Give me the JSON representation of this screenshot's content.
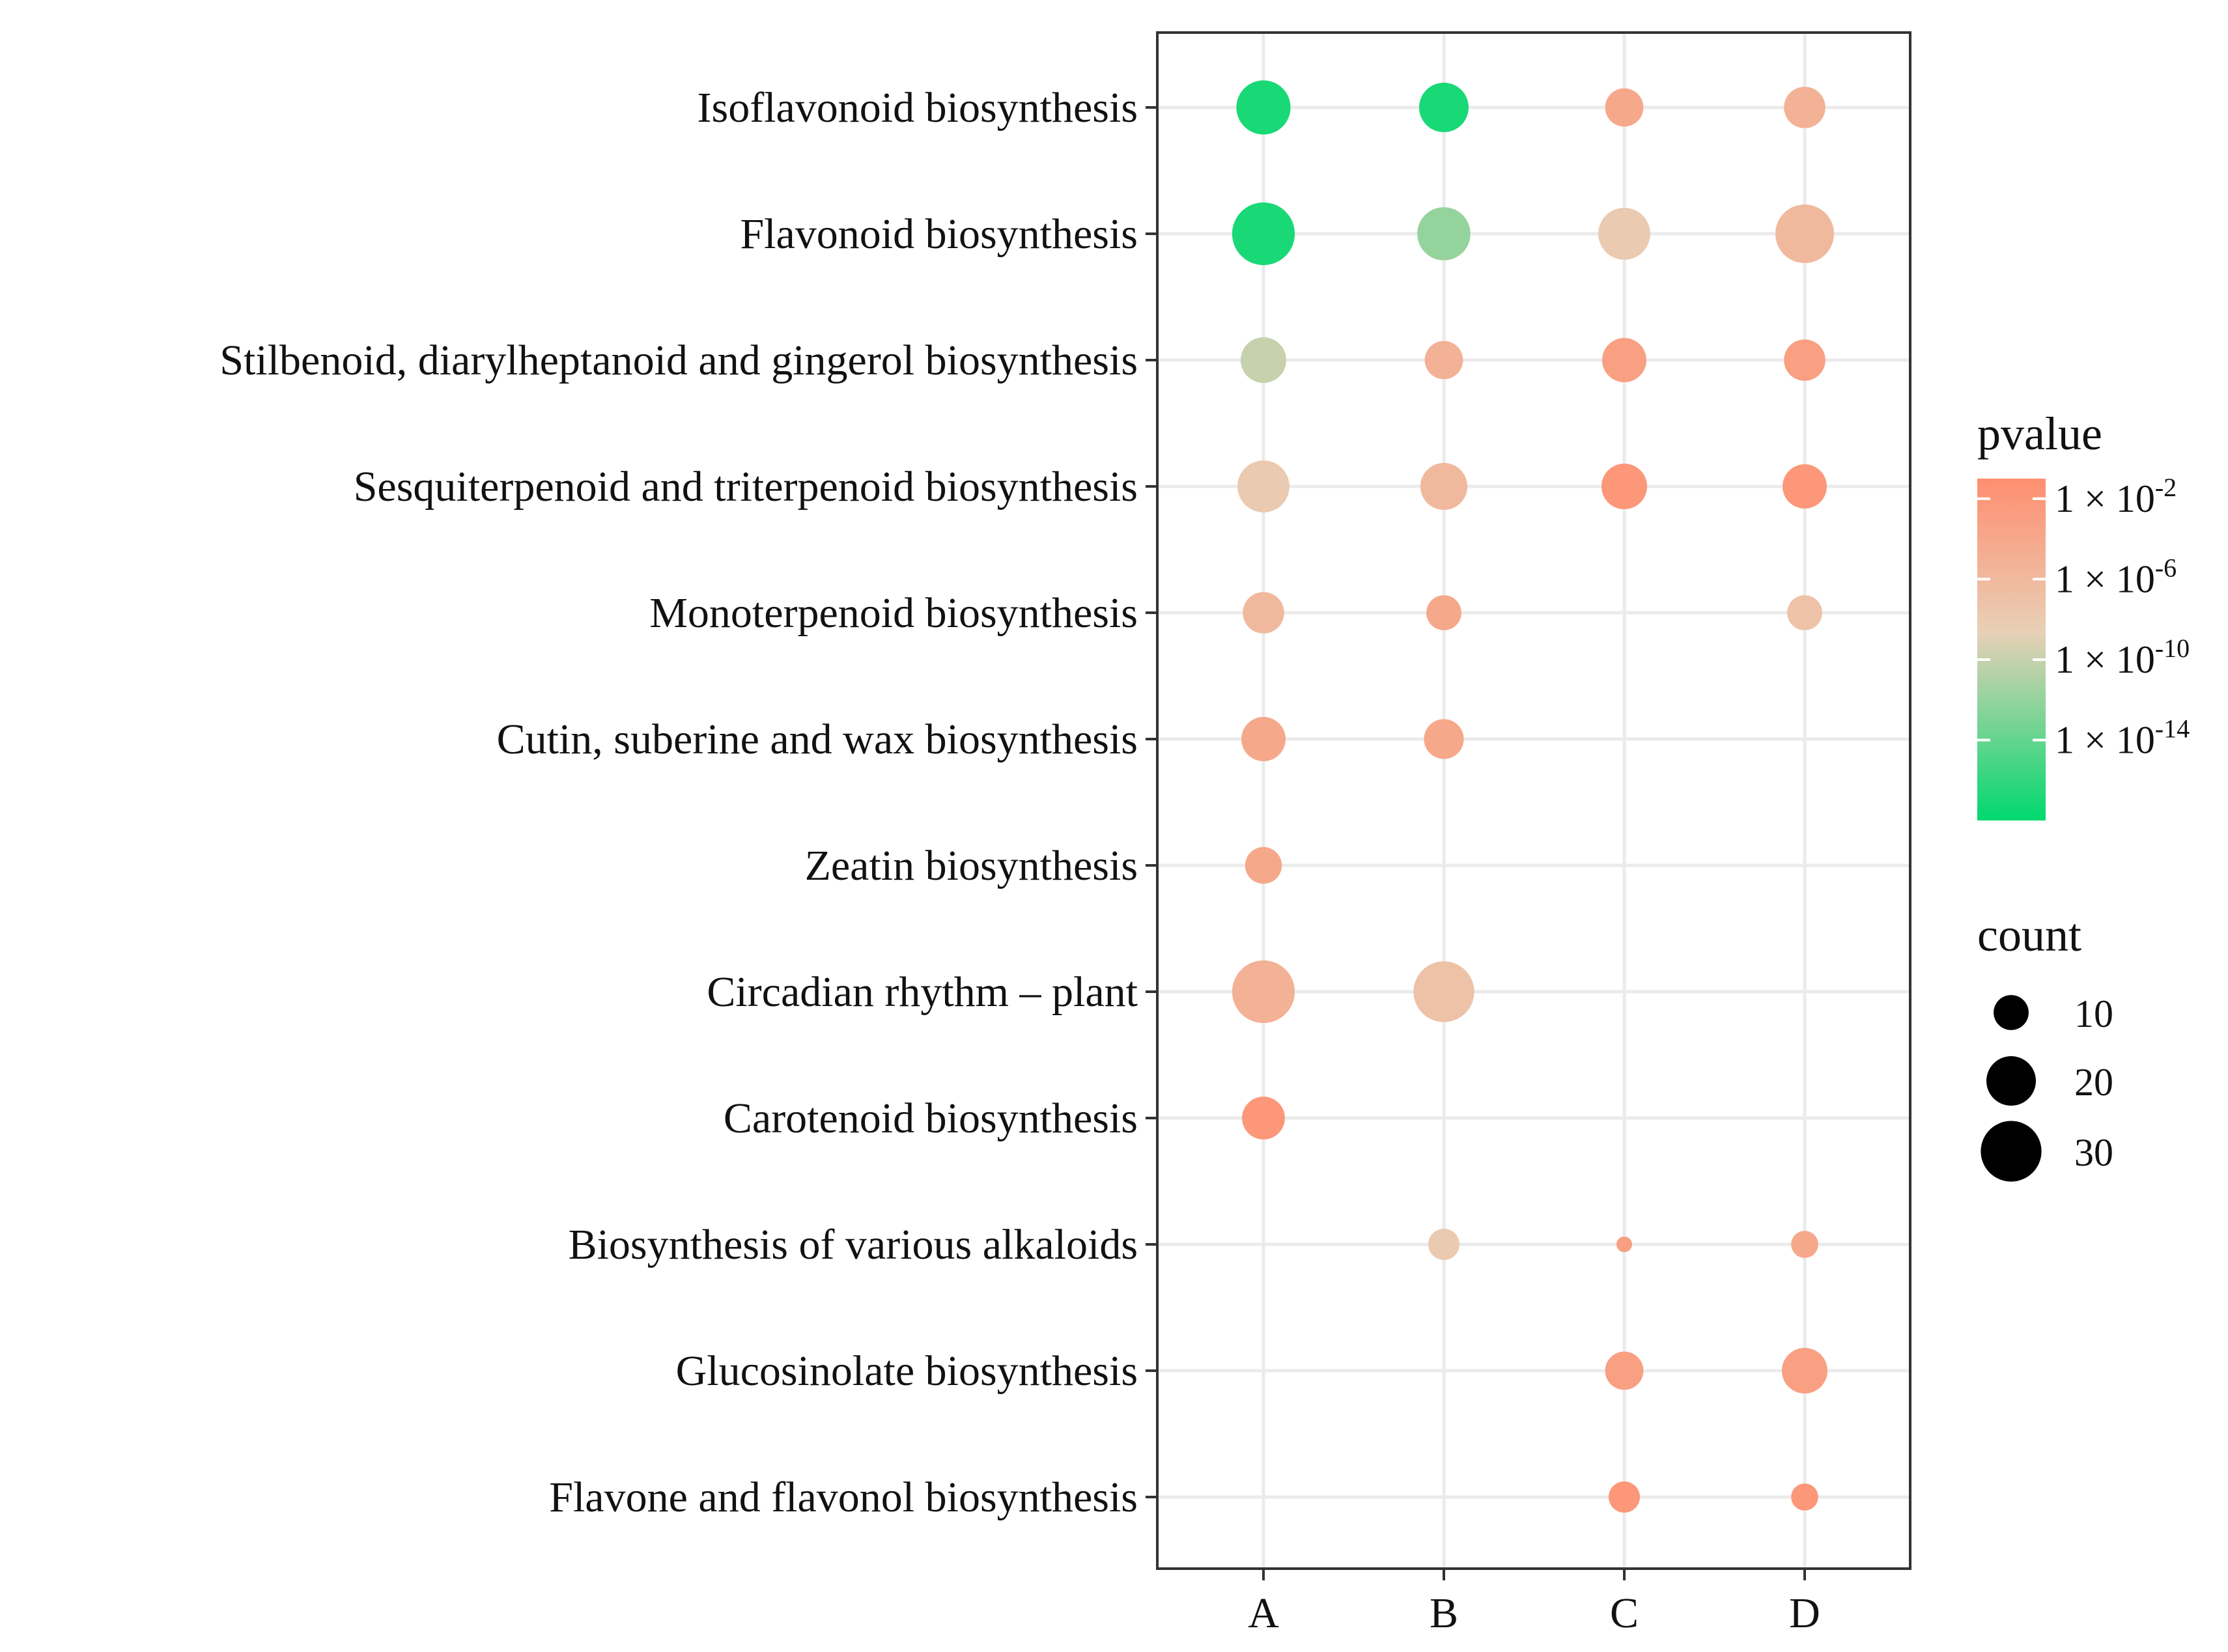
{
  "chart_data": {
    "type": "scatter",
    "x_categories": [
      "A",
      "B",
      "C",
      "D"
    ],
    "y_categories": [
      "Isoflavonoid biosynthesis",
      "Flavonoid biosynthesis",
      "Stilbenoid, diarylheptanoid and gingerol biosynthesis",
      "Sesquiterpenoid and triterpenoid biosynthesis",
      "Monoterpenoid biosynthesis",
      "Cutin, suberine and wax biosynthesis",
      "Zeatin biosynthesis",
      "Circadian rhythm – plant",
      "Carotenoid biosynthesis",
      "Biosynthesis of various alkaloids",
      "Glucosinolate biosynthesis",
      "Flavone and flavonol biosynthesis"
    ],
    "points": [
      {
        "x": "A",
        "y": "Isoflavonoid biosynthesis",
        "count": 24,
        "pvalue": 1e-17
      },
      {
        "x": "B",
        "y": "Isoflavonoid biosynthesis",
        "count": 20,
        "pvalue": 1e-17
      },
      {
        "x": "C",
        "y": "Isoflavonoid biosynthesis",
        "count": 12,
        "pvalue": 0.0001
      },
      {
        "x": "D",
        "y": "Isoflavonoid biosynthesis",
        "count": 14,
        "pvalue": 1e-05
      },
      {
        "x": "A",
        "y": "Flavonoid biosynthesis",
        "count": 32,
        "pvalue": 1e-17
      },
      {
        "x": "B",
        "y": "Flavonoid biosynthesis",
        "count": 23,
        "pvalue": 1e-12
      },
      {
        "x": "C",
        "y": "Flavonoid biosynthesis",
        "count": 22,
        "pvalue": 1e-08
      },
      {
        "x": "D",
        "y": "Flavonoid biosynthesis",
        "count": 28,
        "pvalue": 1e-06
      },
      {
        "x": "A",
        "y": "Stilbenoid, diarylheptanoid and gingerol biosynthesis",
        "count": 17,
        "pvalue": 1e-10
      },
      {
        "x": "B",
        "y": "Stilbenoid, diarylheptanoid and gingerol biosynthesis",
        "count": 12,
        "pvalue": 1e-05
      },
      {
        "x": "C",
        "y": "Stilbenoid, diarylheptanoid and gingerol biosynthesis",
        "count": 16,
        "pvalue": 0.001
      },
      {
        "x": "D",
        "y": "Stilbenoid, diarylheptanoid and gingerol biosynthesis",
        "count": 14,
        "pvalue": 0.001
      },
      {
        "x": "A",
        "y": "Sesquiterpenoid and triterpenoid biosynthesis",
        "count": 22,
        "pvalue": 1e-08
      },
      {
        "x": "B",
        "y": "Sesquiterpenoid and triterpenoid biosynthesis",
        "count": 18,
        "pvalue": 1e-06
      },
      {
        "x": "C",
        "y": "Sesquiterpenoid and triterpenoid biosynthesis",
        "count": 17,
        "pvalue": 0.01
      },
      {
        "x": "D",
        "y": "Sesquiterpenoid and triterpenoid biosynthesis",
        "count": 16,
        "pvalue": 0.01
      },
      {
        "x": "A",
        "y": "Monoterpenoid biosynthesis",
        "count": 14,
        "pvalue": 1e-06
      },
      {
        "x": "B",
        "y": "Monoterpenoid biosynthesis",
        "count": 10,
        "pvalue": 0.0001
      },
      {
        "x": "D",
        "y": "Monoterpenoid biosynthesis",
        "count": 10,
        "pvalue": 1e-07
      },
      {
        "x": "A",
        "y": "Cutin, suberine and wax biosynthesis",
        "count": 16,
        "pvalue": 0.0001
      },
      {
        "x": "B",
        "y": "Cutin, suberine and wax biosynthesis",
        "count": 13,
        "pvalue": 0.0001
      },
      {
        "x": "A",
        "y": "Zeatin biosynthesis",
        "count": 11,
        "pvalue": 0.0001
      },
      {
        "x": "A",
        "y": "Circadian rhythm – plant",
        "count": 32,
        "pvalue": 1e-05
      },
      {
        "x": "B",
        "y": "Circadian rhythm – plant",
        "count": 30,
        "pvalue": 1e-07
      },
      {
        "x": "A",
        "y": "Carotenoid biosynthesis",
        "count": 15,
        "pvalue": 0.01
      },
      {
        "x": "B",
        "y": "Biosynthesis of various alkaloids",
        "count": 8,
        "pvalue": 1e-08
      },
      {
        "x": "C",
        "y": "Biosynthesis of various alkaloids",
        "count": 2,
        "pvalue": 0.001
      },
      {
        "x": "D",
        "y": "Biosynthesis of various alkaloids",
        "count": 6,
        "pvalue": 0.0001
      },
      {
        "x": "C",
        "y": "Glucosinolate biosynthesis",
        "count": 12,
        "pvalue": 0.001
      },
      {
        "x": "D",
        "y": "Glucosinolate biosynthesis",
        "count": 17,
        "pvalue": 0.001
      },
      {
        "x": "C",
        "y": "Flavone and flavonol biosynthesis",
        "count": 8,
        "pvalue": 0.01
      },
      {
        "x": "D",
        "y": "Flavone and flavonol biosynthesis",
        "count": 6,
        "pvalue": 0.01
      }
    ],
    "color_legend": {
      "title": "pvalue",
      "ticks": [
        {
          "base": "1 × 10",
          "exp": "-2",
          "value": 0.01
        },
        {
          "base": "1 × 10",
          "exp": "-6",
          "value": 1e-06
        },
        {
          "base": "1 × 10",
          "exp": "-10",
          "value": 1e-10
        },
        {
          "base": "1 × 10",
          "exp": "-14",
          "value": 1e-14
        }
      ],
      "range_log10": [
        -18,
        -1
      ],
      "low_color": "#00d96e",
      "mid_color": "#e8d0b6",
      "high_color": "#ff8e70"
    },
    "size_legend": {
      "title": "count",
      "entries": [
        {
          "label": "10",
          "value": 10
        },
        {
          "label": "20",
          "value": 20
        },
        {
          "label": "30",
          "value": 30
        }
      ]
    },
    "grid": true,
    "legend_position": "right"
  }
}
